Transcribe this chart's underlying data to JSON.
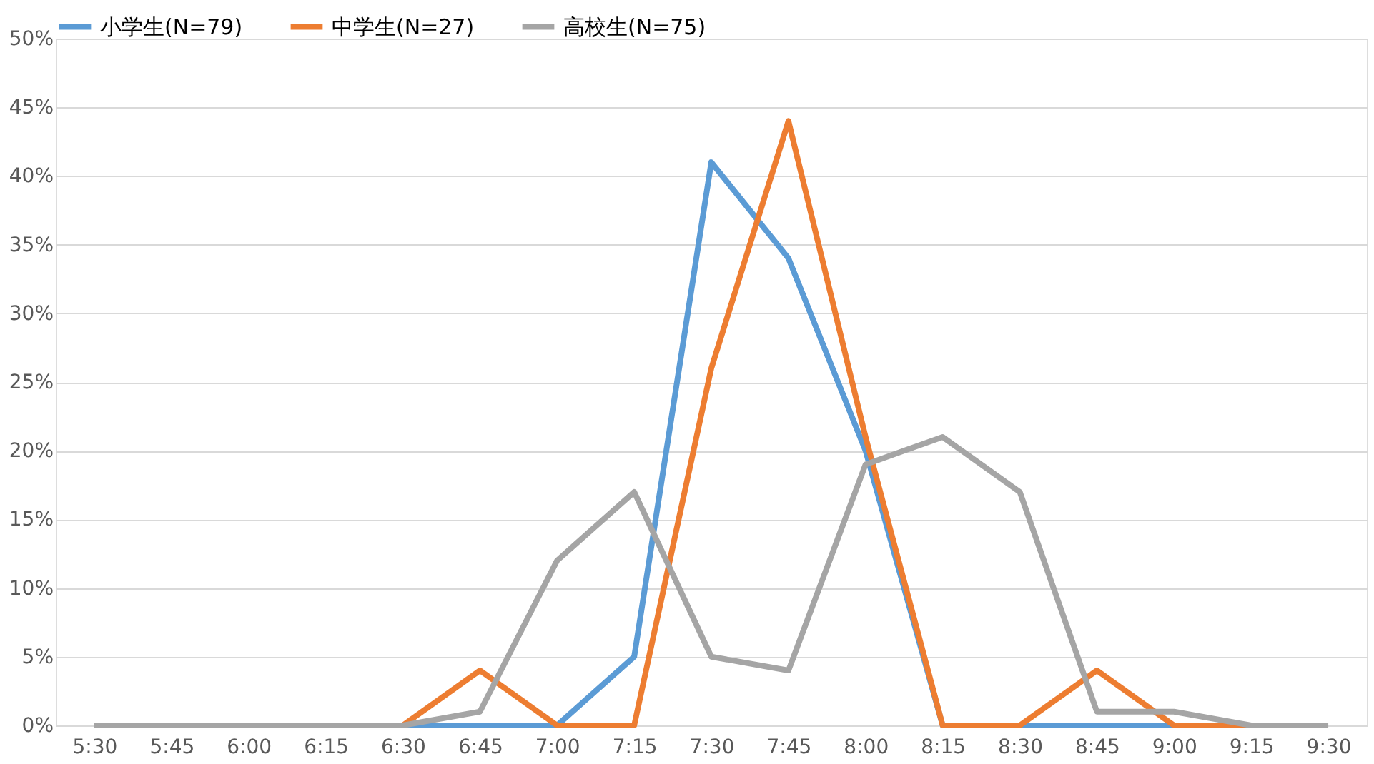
{
  "chart_data": {
    "type": "line",
    "categories": [
      "5:30",
      "5:45",
      "6:00",
      "6:15",
      "6:30",
      "6:45",
      "7:00",
      "7:15",
      "7:30",
      "7:45",
      "8:00",
      "8:15",
      "8:30",
      "8:45",
      "9:00",
      "9:15",
      "9:30"
    ],
    "series": [
      {
        "name": "小学生(N=79)",
        "color": "#5b9bd5",
        "values": [
          null,
          null,
          null,
          null,
          0,
          0,
          0,
          5,
          41,
          34,
          20,
          0,
          0,
          0,
          0,
          0,
          null
        ]
      },
      {
        "name": "中学生(N=27)",
        "color": "#ed7d31",
        "values": [
          null,
          null,
          null,
          null,
          0,
          4,
          0,
          0,
          26,
          44,
          21,
          0,
          0,
          4,
          0,
          0,
          null
        ]
      },
      {
        "name": "高校生(N=75)",
        "color": "#a5a5a5",
        "values": [
          0,
          0,
          0,
          0,
          0,
          1,
          12,
          17,
          5,
          4,
          19,
          21,
          17,
          1,
          1,
          0,
          0
        ]
      }
    ],
    "ylim": [
      0,
      50
    ],
    "yticks": [
      {
        "value": 0,
        "label": "0%"
      },
      {
        "value": 5,
        "label": "5%"
      },
      {
        "value": 10,
        "label": "10%"
      },
      {
        "value": 15,
        "label": "15%"
      },
      {
        "value": 20,
        "label": "20%"
      },
      {
        "value": 25,
        "label": "25%"
      },
      {
        "value": 30,
        "label": "30%"
      },
      {
        "value": 35,
        "label": "35%"
      },
      {
        "value": 40,
        "label": "40%"
      },
      {
        "value": 45,
        "label": "45%"
      },
      {
        "value": 50,
        "label": "50%"
      }
    ],
    "grid": "y",
    "legend": "top",
    "marker": "none",
    "line_style": "solid"
  }
}
